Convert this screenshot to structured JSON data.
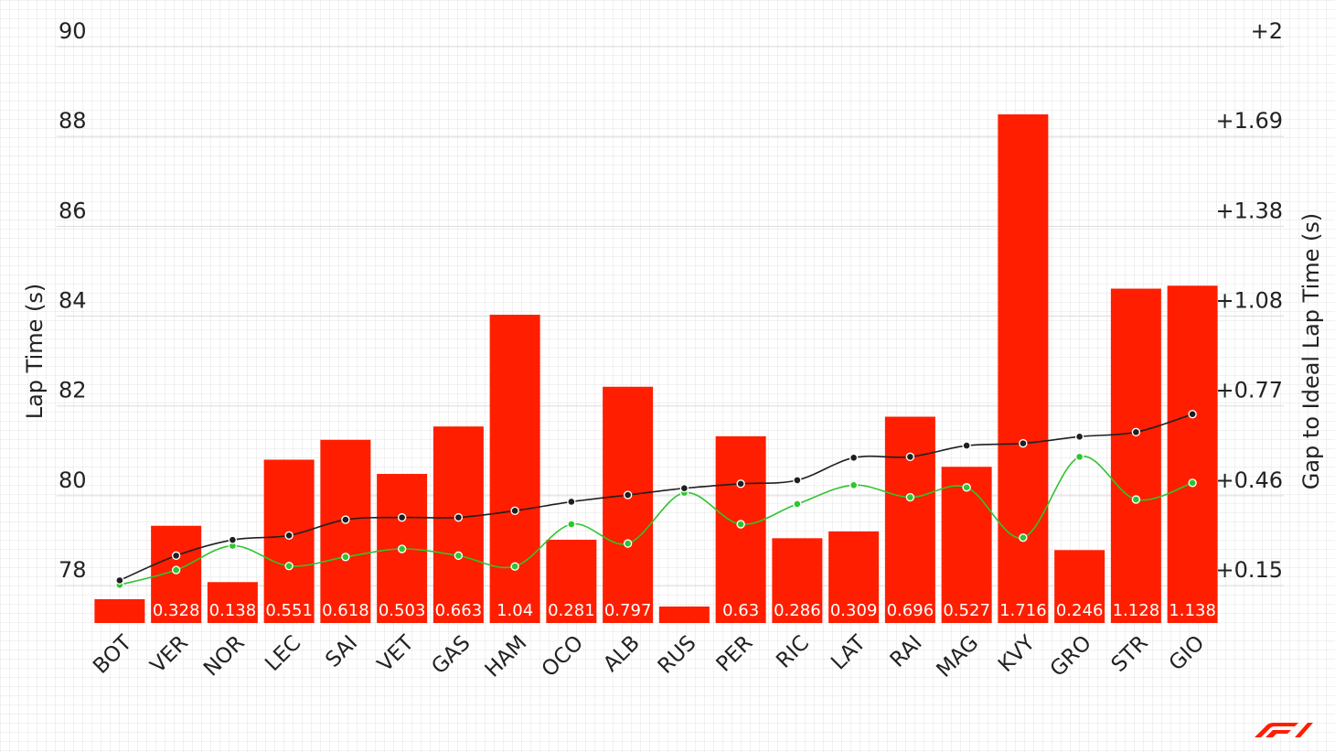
{
  "chart_data": {
    "type": "bar",
    "categories": [
      "BOT",
      "VER",
      "NOR",
      "LEC",
      "SAI",
      "VET",
      "GAS",
      "HAM",
      "OCO",
      "ALB",
      "RUS",
      "PER",
      "RIC",
      "LAT",
      "RAI",
      "MAG",
      "KVY",
      "GRO",
      "STR",
      "GIO"
    ],
    "ylabel": "Lap Time (s)",
    "y2label": "Gap to Ideal Lap Time (s)",
    "ylim": [
      76.8,
      90
    ],
    "yticks": [
      78,
      80,
      82,
      84,
      86,
      88,
      90
    ],
    "y2ticks": [
      "+0.15",
      "+0.46",
      "+0.77",
      "+1.08",
      "+1.38",
      "+1.69",
      "+2"
    ],
    "grid": true,
    "colors": {
      "bar": "#ff1e00",
      "line_lap": "#1f1f1f",
      "line_ideal": "#2ec52e",
      "grid": "#dcdcdc",
      "logo": "#ff1e00"
    },
    "series": [
      {
        "type": "bar",
        "axis": "right",
        "values": [
          0,
          0.328,
          0.138,
          0.551,
          0.618,
          0.503,
          0.663,
          1.04,
          0.281,
          0.797,
          0.052,
          0.63,
          0.286,
          0.309,
          0.696,
          0.527,
          1.716,
          0.246,
          1.128,
          1.138
        ],
        "labels": [
          "",
          "0.328",
          "0.138",
          "0.551",
          "0.618",
          "0.503",
          "0.663",
          "1.04",
          "0.281",
          "0.797",
          "",
          "0.63",
          "0.286",
          "0.309",
          "0.696",
          "0.527",
          "1.716",
          "0.246",
          "1.128",
          "1.138"
        ]
      },
      {
        "type": "line",
        "axis": "left",
        "values": [
          77.75,
          78.3,
          78.65,
          78.75,
          79.1,
          79.15,
          79.15,
          79.3,
          79.5,
          79.65,
          79.8,
          79.9,
          79.98,
          80.48,
          80.5,
          80.75,
          80.8,
          80.95,
          81.05,
          81.45
        ]
      },
      {
        "type": "line",
        "axis": "left",
        "values": [
          77.65,
          77.98,
          78.52,
          78.07,
          78.27,
          78.45,
          78.3,
          78.06,
          79.0,
          78.57,
          79.7,
          79.0,
          79.45,
          79.87,
          79.6,
          79.82,
          78.7,
          80.5,
          79.55,
          79.92
        ]
      }
    ]
  },
  "branding": {
    "logo": "F1"
  }
}
